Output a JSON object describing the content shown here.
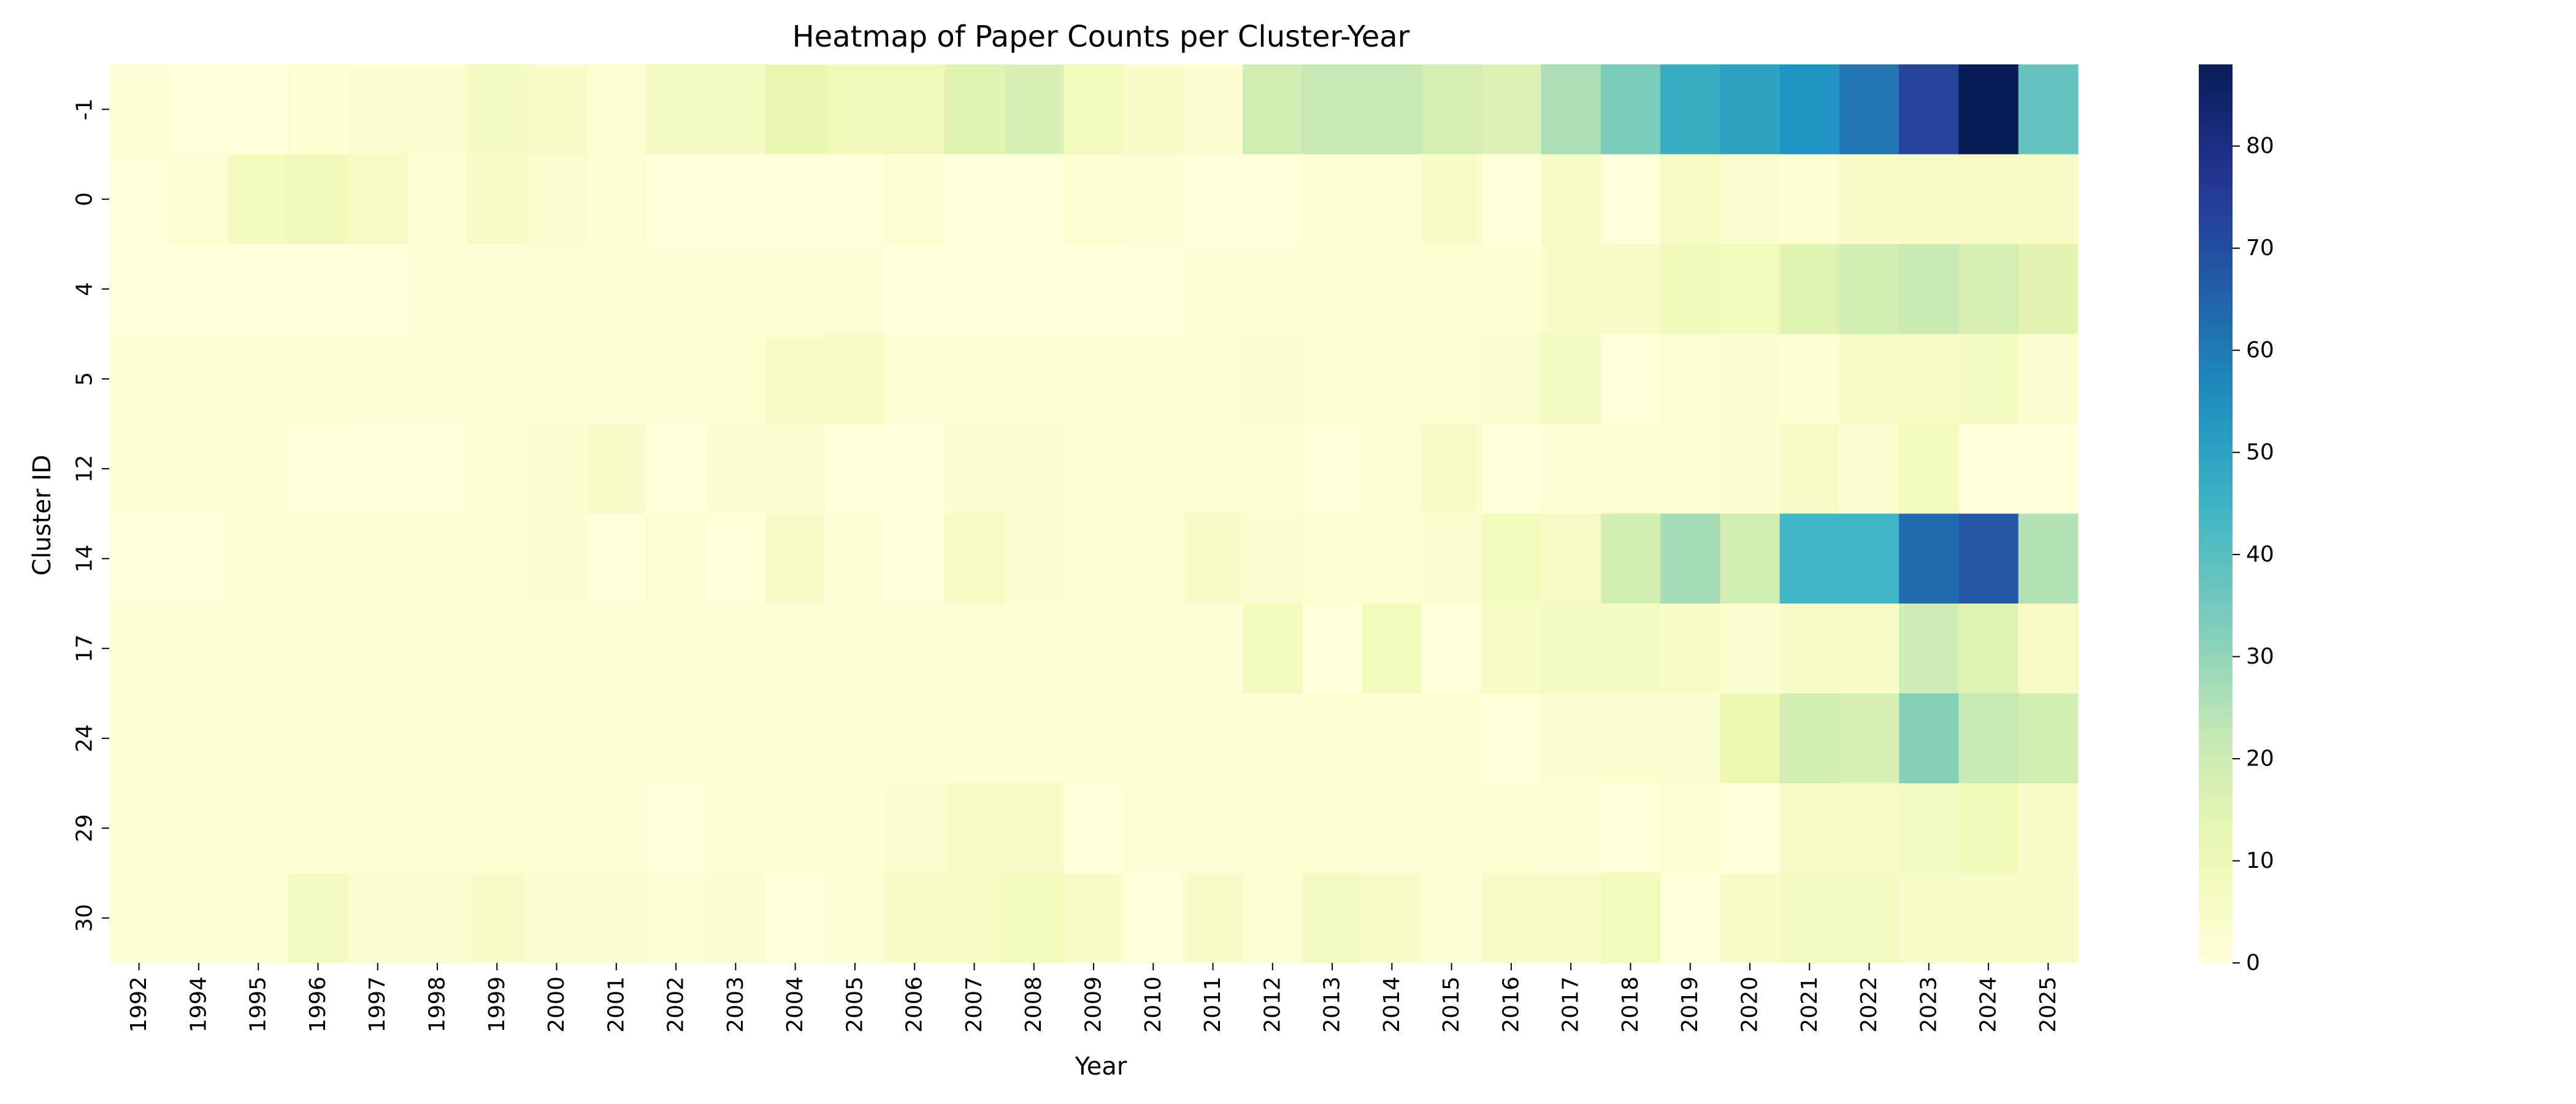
{
  "chart_data": {
    "type": "heatmap",
    "title": "Heatmap of Paper Counts per Cluster-Year",
    "xlabel": "Year",
    "ylabel": "Cluster ID",
    "x_categories": [
      "1992",
      "1994",
      "1995",
      "1996",
      "1997",
      "1998",
      "1999",
      "2000",
      "2001",
      "2002",
      "2003",
      "2004",
      "2005",
      "2006",
      "2007",
      "2008",
      "2009",
      "2010",
      "2011",
      "2012",
      "2013",
      "2014",
      "2015",
      "2016",
      "2017",
      "2018",
      "2019",
      "2020",
      "2021",
      "2022",
      "2023",
      "2024",
      "2025"
    ],
    "y_categories": [
      "-1",
      "0",
      "4",
      "5",
      "12",
      "14",
      "17",
      "24",
      "29",
      "30"
    ],
    "values": [
      [
        1,
        0,
        0,
        2,
        3,
        3,
        7,
        5,
        2,
        7,
        7,
        12,
        9,
        9,
        15,
        17,
        8,
        5,
        3,
        19,
        22,
        22,
        18,
        16,
        26,
        34,
        47,
        50,
        54,
        61,
        73,
        88,
        38
      ],
      [
        0,
        2,
        8,
        9,
        6,
        1,
        5,
        3,
        2,
        0,
        0,
        0,
        0,
        2,
        0,
        0,
        2,
        1,
        0,
        0,
        1,
        2,
        4,
        0,
        5,
        0,
        6,
        3,
        2,
        4,
        5,
        6,
        5
      ],
      [
        0,
        0,
        0,
        0,
        0,
        1,
        1,
        1,
        1,
        1,
        1,
        1,
        1,
        0,
        0,
        0,
        0,
        0,
        1,
        1,
        1,
        1,
        2,
        2,
        4,
        5,
        9,
        8,
        15,
        19,
        21,
        18,
        14
      ],
      [
        1,
        1,
        1,
        2,
        1,
        1,
        2,
        2,
        1,
        1,
        2,
        4,
        6,
        1,
        1,
        1,
        2,
        1,
        1,
        3,
        2,
        2,
        2,
        3,
        7,
        0,
        2,
        3,
        2,
        6,
        6,
        7,
        3
      ],
      [
        1,
        1,
        1,
        0,
        0,
        0,
        1,
        3,
        4,
        0,
        3,
        3,
        0,
        0,
        3,
        3,
        2,
        1,
        2,
        2,
        0,
        2,
        4,
        0,
        1,
        2,
        2,
        3,
        5,
        3,
        8,
        0,
        0
      ],
      [
        0,
        0,
        1,
        1,
        1,
        1,
        1,
        3,
        0,
        2,
        0,
        4,
        1,
        0,
        6,
        3,
        2,
        1,
        4,
        3,
        2,
        2,
        3,
        8,
        5,
        19,
        27,
        19,
        44,
        44,
        63,
        68,
        25
      ],
      [
        1,
        1,
        1,
        1,
        1,
        1,
        1,
        1,
        1,
        1,
        1,
        1,
        1,
        1,
        1,
        1,
        2,
        1,
        1,
        8,
        0,
        8,
        0,
        6,
        7,
        7,
        5,
        3,
        4,
        5,
        20,
        15,
        6
      ],
      [
        1,
        1,
        1,
        1,
        1,
        1,
        1,
        1,
        1,
        1,
        1,
        1,
        1,
        1,
        1,
        1,
        1,
        1,
        1,
        1,
        2,
        1,
        2,
        0,
        3,
        3,
        3,
        11,
        19,
        17,
        32,
        22,
        19
      ],
      [
        1,
        1,
        1,
        1,
        1,
        1,
        2,
        1,
        1,
        0,
        1,
        2,
        2,
        3,
        4,
        5,
        0,
        1,
        1,
        2,
        2,
        1,
        2,
        2,
        1,
        0,
        2,
        0,
        4,
        5,
        7,
        9,
        4
      ],
      [
        1,
        1,
        2,
        7,
        3,
        3,
        4,
        3,
        3,
        1,
        3,
        0,
        1,
        5,
        6,
        8,
        4,
        0,
        4,
        2,
        7,
        4,
        1,
        4,
        4,
        8,
        0,
        4,
        7,
        7,
        4,
        5,
        5
      ]
    ],
    "colorbar": {
      "min": 0,
      "max": 88,
      "ticks": [
        "0",
        "10",
        "20",
        "30",
        "40",
        "50",
        "60",
        "70",
        "80"
      ],
      "colormap": "YlGnBu"
    },
    "grid": false
  }
}
